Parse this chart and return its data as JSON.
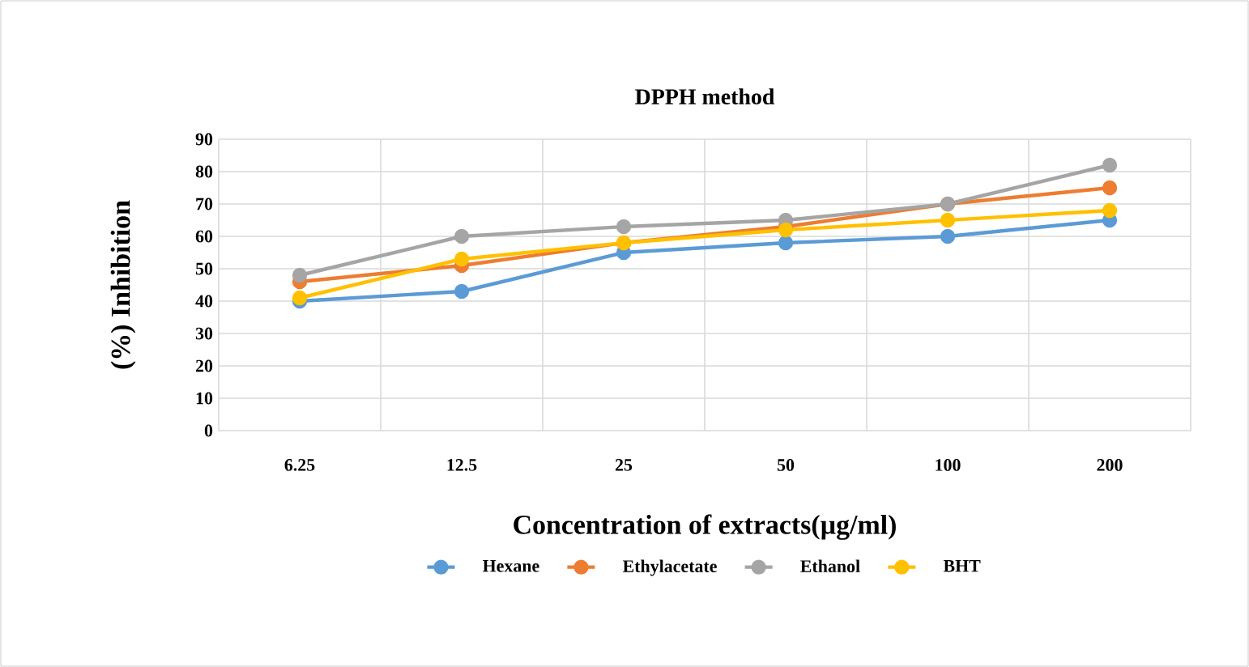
{
  "chart_data": {
    "type": "line",
    "title": "DPPH method",
    "xlabel": "Concentration of extracts(µg/ml)",
    "ylabel": "(%) Inhibition",
    "categories": [
      "6.25",
      "12.5",
      "25",
      "50",
      "100",
      "200"
    ],
    "series": [
      {
        "name": "Hexane",
        "color": "#5b9bd5",
        "values": [
          40,
          43,
          55,
          58,
          60,
          65
        ]
      },
      {
        "name": "Ethylacetate",
        "color": "#ed7d31",
        "values": [
          46,
          51,
          58,
          63,
          70,
          75
        ]
      },
      {
        "name": "Ethanol",
        "color": "#a5a5a5",
        "values": [
          48,
          60,
          63,
          65,
          70,
          82
        ]
      },
      {
        "name": "BHT",
        "color": "#ffc000",
        "values": [
          41,
          53,
          58,
          62,
          65,
          68
        ]
      }
    ],
    "ylim": [
      0,
      90
    ],
    "yticks": [
      0,
      10,
      20,
      30,
      40,
      50,
      60,
      70,
      80,
      90
    ],
    "grid": true,
    "legend": "bottom",
    "marker": "circle",
    "line_style": "solid"
  }
}
